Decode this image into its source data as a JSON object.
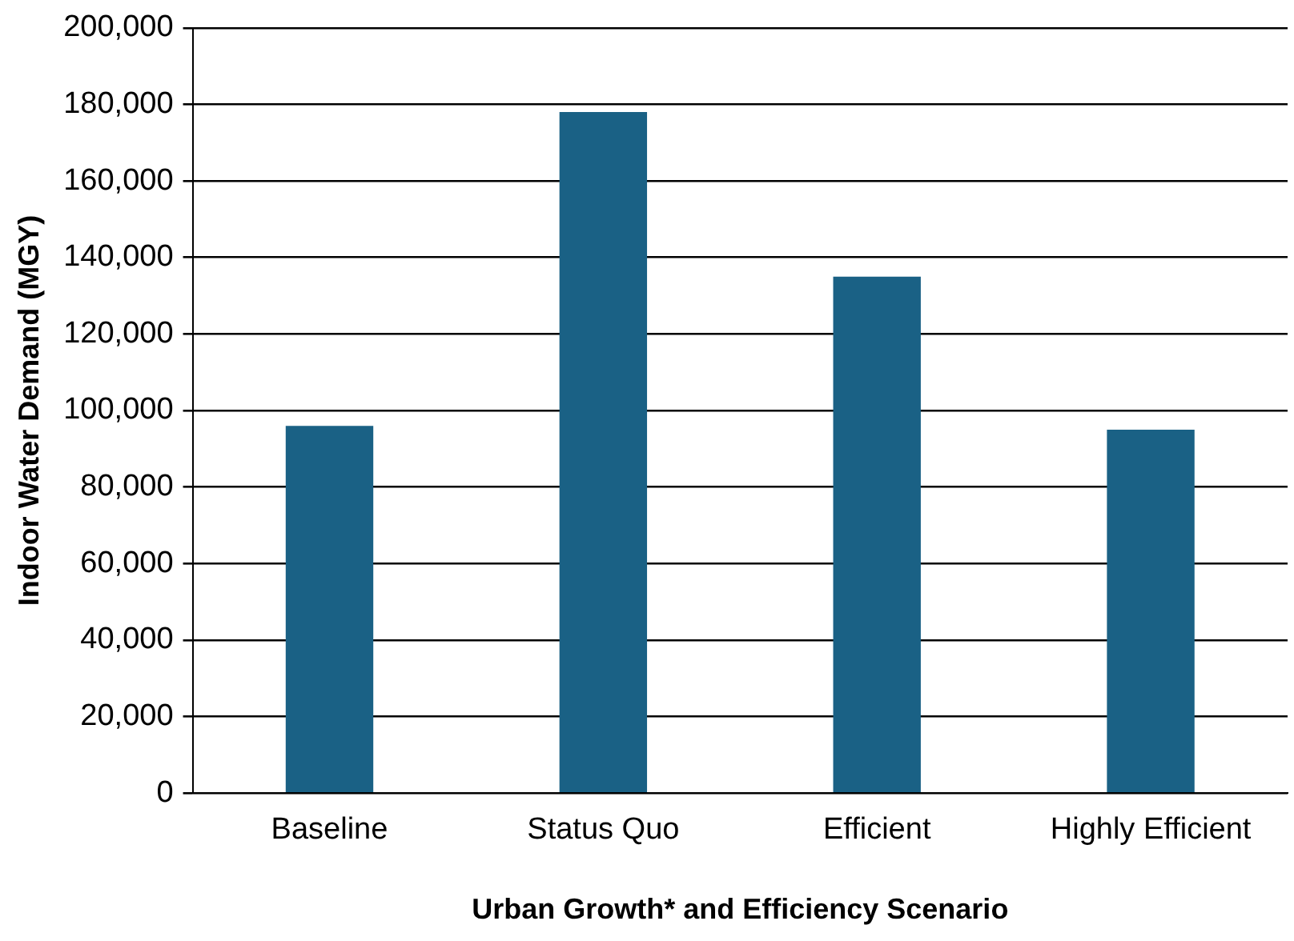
{
  "chart_data": {
    "type": "bar",
    "xlabel": "Urban Growth* and Efficiency Scenario",
    "ylabel": "Indoor Water Demand (MGY)",
    "categories": [
      "Baseline",
      "Status Quo",
      "Efficient",
      "Highly Efficient"
    ],
    "values": [
      96000,
      178000,
      135000,
      95000
    ],
    "color": "#1a6185",
    "ylim": [
      0,
      200000
    ],
    "yticks": [
      0,
      {
        "value": 20000,
        "label": "20,000"
      },
      {
        "value": 40000,
        "label": "40,000"
      },
      {
        "value": 60000,
        "label": "60,000"
      },
      {
        "value": 80000,
        "label": "80,000"
      },
      {
        "value": 100000,
        "label": "100,000"
      },
      {
        "value": 120000,
        "label": "120,000"
      },
      {
        "value": 140000,
        "label": "140,000"
      },
      {
        "value": 160000,
        "label": "160,000"
      },
      {
        "value": 180000,
        "label": "180,000"
      },
      {
        "value": 200000,
        "label": "200,000"
      }
    ],
    "grid": "y",
    "legend": false
  }
}
